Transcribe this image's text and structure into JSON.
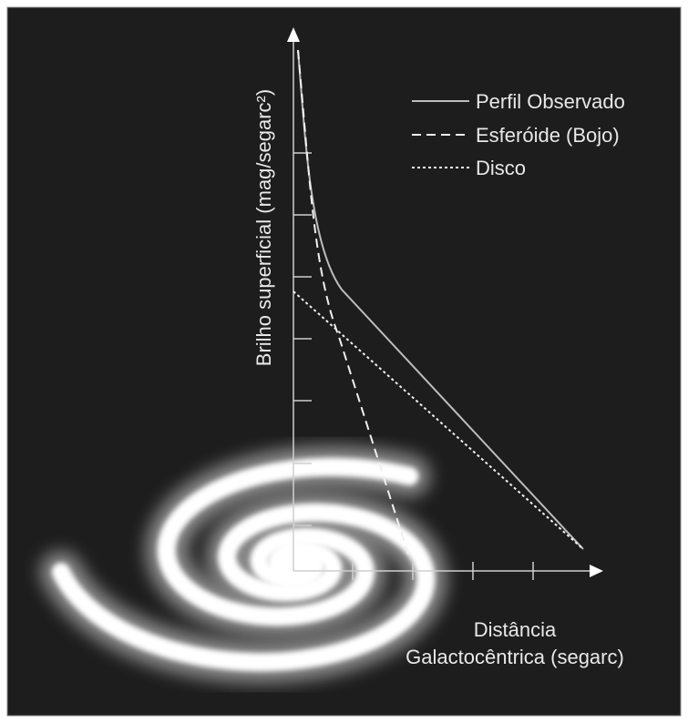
{
  "axes": {
    "y_label": "Brilho superficial (mag/segarc²)",
    "x_label": [
      "Distância",
      "Galactocêntrica (segarc)"
    ]
  },
  "legend": [
    "Perfil Observado",
    "Esferóide (Bojo)",
    "Disco"
  ]
}
